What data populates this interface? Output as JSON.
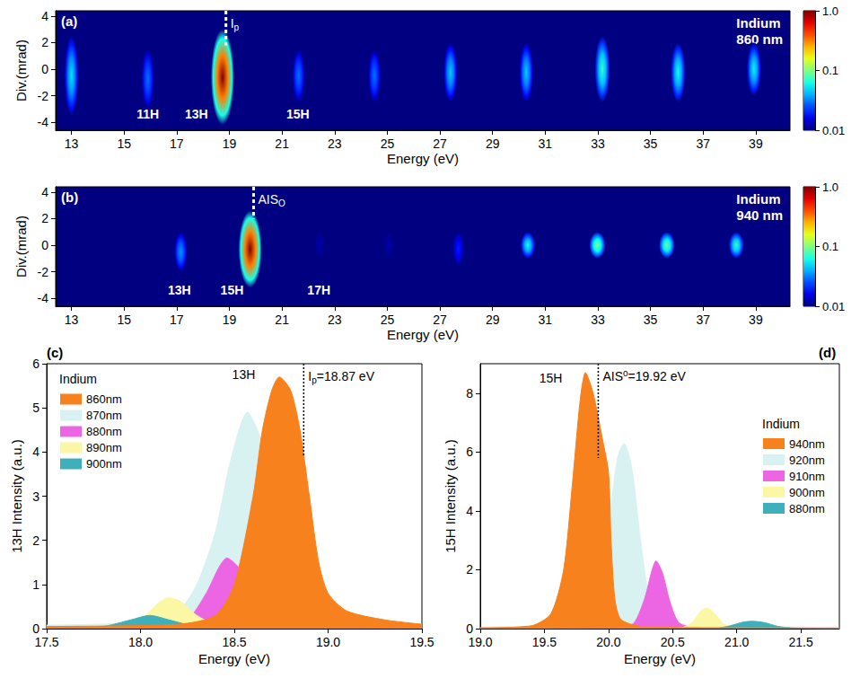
{
  "chart_data": [
    {
      "type": "heatmap",
      "panel_label": "(a)",
      "sample": "Indium",
      "wavelength_label": "860 nm",
      "x_label": "Energy (eV)",
      "y_label": "Div.(mrad)",
      "xlim": [
        12.4,
        40.3
      ],
      "xticks": [
        13,
        15,
        17,
        19,
        21,
        23,
        25,
        27,
        29,
        31,
        33,
        35,
        37,
        39
      ],
      "ylim": [
        -4.6,
        4.4
      ],
      "yticks": [
        -4,
        -2,
        0,
        2,
        4
      ],
      "grid": false,
      "spots": [
        {
          "energy": 13.0,
          "div_min": -3.5,
          "div_max": 2.5,
          "intensity": 0.05
        },
        {
          "energy": 15.9,
          "div_min": -3.0,
          "div_max": 1.5,
          "intensity": 0.03
        },
        {
          "energy": 18.74,
          "div_min": -4.2,
          "div_max": 3.0,
          "intensity": 1.0
        },
        {
          "energy": 21.63,
          "div_min": -2.5,
          "div_max": 1.5,
          "intensity": 0.03
        },
        {
          "energy": 24.51,
          "div_min": -2.5,
          "div_max": 1.5,
          "intensity": 0.03
        },
        {
          "energy": 27.4,
          "div_min": -2.5,
          "div_max": 2.0,
          "intensity": 0.045
        },
        {
          "energy": 30.28,
          "div_min": -2.5,
          "div_max": 2.0,
          "intensity": 0.045
        },
        {
          "energy": 33.17,
          "div_min": -2.5,
          "div_max": 2.5,
          "intensity": 0.07
        },
        {
          "energy": 36.05,
          "div_min": -2.5,
          "div_max": 2.0,
          "intensity": 0.06
        },
        {
          "energy": 38.93,
          "div_min": -2.0,
          "div_max": 2.0,
          "intensity": 0.055
        }
      ],
      "annotations": [
        {
          "text": "11H",
          "x": 15.9,
          "y": -3.4
        },
        {
          "text": "13H",
          "x": 17.75,
          "y": -3.4
        },
        {
          "text": "15H",
          "x": 21.6,
          "y": -3.4
        }
      ],
      "marker_line": {
        "x": 18.87,
        "y_range": [
          1.8,
          4.4
        ],
        "text": "I",
        "subscript": "p"
      },
      "colorbar": {
        "lim": [
          0.01,
          1
        ],
        "ticks": [
          0.01,
          0.1,
          {
            "value": 1,
            "label": "1.0"
          }
        ],
        "log": true
      }
    },
    {
      "type": "heatmap",
      "panel_label": "(b)",
      "sample": "Indium",
      "wavelength_label": "940 nm",
      "x_label": "Energy (eV)",
      "y_label": "Div.(mrad)",
      "xlim": [
        12.4,
        40.3
      ],
      "xticks": [
        13,
        15,
        17,
        19,
        21,
        23,
        25,
        27,
        29,
        31,
        33,
        35,
        37,
        39
      ],
      "ylim": [
        -4.6,
        4.4
      ],
      "yticks": [
        -4,
        -2,
        0,
        2,
        4
      ],
      "grid": false,
      "spots": [
        {
          "energy": 17.15,
          "div_min": -2.0,
          "div_max": 1.0,
          "intensity": 0.035
        },
        {
          "energy": 19.79,
          "div_min": -3.2,
          "div_max": 2.6,
          "intensity": 1.0
        },
        {
          "energy": 22.43,
          "div_min": -1.0,
          "div_max": 1.0,
          "intensity": 0.012
        },
        {
          "energy": 25.06,
          "div_min": -1.0,
          "div_max": 1.0,
          "intensity": 0.012
        },
        {
          "energy": 27.7,
          "div_min": -1.5,
          "div_max": 1.0,
          "intensity": 0.02
        },
        {
          "energy": 30.34,
          "div_min": -1.0,
          "div_max": 1.0,
          "intensity": 0.06
        },
        {
          "energy": 32.98,
          "div_min": -1.0,
          "div_max": 1.0,
          "intensity": 0.1
        },
        {
          "energy": 35.62,
          "div_min": -1.0,
          "div_max": 1.0,
          "intensity": 0.09
        },
        {
          "energy": 38.26,
          "div_min": -1.0,
          "div_max": 1.0,
          "intensity": 0.07
        }
      ],
      "annotations": [
        {
          "text": "13H",
          "x": 17.1,
          "y": -3.4
        },
        {
          "text": "15H",
          "x": 19.1,
          "y": -3.4
        },
        {
          "text": "17H",
          "x": 22.4,
          "y": -3.4
        }
      ],
      "marker_line": {
        "x": 19.92,
        "y_range": [
          2.0,
          4.4
        ],
        "text": "AIS",
        "subscript": "O"
      },
      "colorbar": {
        "lim": [
          0.01,
          1
        ],
        "ticks": [
          0.01,
          0.1,
          {
            "value": 1,
            "label": "1.0"
          }
        ],
        "log": true
      }
    },
    {
      "type": "area",
      "panel_label": "(c)",
      "legend_title": "Indium",
      "legend": "upper left",
      "x_label": "Energy (eV)",
      "y_label": "13H Intensity (a.u.)",
      "xlim": [
        17.5,
        19.5
      ],
      "xticks": [
        17.5,
        {
          "value": 18,
          "label": "18.0"
        },
        18.5,
        {
          "value": 19,
          "label": "19.0"
        },
        19.5
      ],
      "ylim": [
        0,
        6
      ],
      "yticks": [
        0,
        1,
        2,
        3,
        4,
        5,
        6
      ],
      "grid": false,
      "series": [
        {
          "name": "860nm",
          "color": "#f7811d",
          "x": [
            17.5,
            18.2,
            18.4,
            18.5,
            18.6,
            18.65,
            18.7,
            18.74,
            18.8,
            18.85,
            18.9,
            18.95,
            19.0,
            19.1,
            19.3,
            19.5
          ],
          "values": [
            0.05,
            0.1,
            0.3,
            1.0,
            3.0,
            4.5,
            5.4,
            5.7,
            5.4,
            4.5,
            3.0,
            1.5,
            0.8,
            0.4,
            0.2,
            0.1
          ]
        },
        {
          "name": "870nm",
          "color": "#d8f1f1",
          "x": [
            17.5,
            18.0,
            18.2,
            18.3,
            18.4,
            18.48,
            18.57,
            18.65,
            18.72,
            18.8,
            18.9,
            19.0,
            19.2,
            19.5
          ],
          "values": [
            0.08,
            0.15,
            0.4,
            1.0,
            2.2,
            3.8,
            4.9,
            4.2,
            3.0,
            1.8,
            0.9,
            0.4,
            0.2,
            0.1
          ]
        },
        {
          "name": "880nm",
          "color": "#ec66e4",
          "x": [
            17.5,
            18.1,
            18.25,
            18.35,
            18.42,
            18.46,
            18.52,
            18.6,
            18.7,
            18.85,
            19.5
          ],
          "values": [
            0.03,
            0.05,
            0.2,
            0.8,
            1.4,
            1.6,
            1.4,
            0.8,
            0.3,
            0.1,
            0.02
          ]
        },
        {
          "name": "890nm",
          "color": "#fbf7a4",
          "x": [
            17.5,
            17.9,
            18.0,
            18.1,
            18.15,
            18.22,
            18.3,
            18.4,
            18.6,
            19.5
          ],
          "values": [
            0.02,
            0.05,
            0.2,
            0.6,
            0.7,
            0.6,
            0.3,
            0.1,
            0.03,
            0.01
          ]
        },
        {
          "name": "900nm",
          "color": "#3fb0bb",
          "x": [
            17.5,
            17.8,
            17.95,
            18.05,
            18.15,
            18.3,
            18.6,
            19.5
          ],
          "values": [
            0.02,
            0.05,
            0.2,
            0.3,
            0.2,
            0.05,
            0.02,
            0.01
          ]
        }
      ],
      "annotations": [
        {
          "text": "13H",
          "x": 18.55,
          "y": 5.75
        }
      ],
      "marker_line": {
        "x": 18.87,
        "y_range": [
          3.9,
          6
        ],
        "text": "I",
        "subscript": "p",
        "suffix": "=18.87 eV"
      }
    },
    {
      "type": "area",
      "panel_label": "(d)",
      "legend_title": "Indium",
      "legend": "center right",
      "x_label": "Energy (eV)",
      "y_label": "15H Intensity (a.u.)",
      "xlim": [
        19.0,
        21.8
      ],
      "xticks": [
        {
          "value": 19,
          "label": "19.0"
        },
        19.5,
        {
          "value": 20,
          "label": "20.0"
        },
        20.5,
        {
          "value": 21,
          "label": "21.0"
        },
        21.5
      ],
      "ylim": [
        0,
        9
      ],
      "yticks": [
        0,
        2,
        4,
        6,
        8
      ],
      "grid": false,
      "series": [
        {
          "name": "940nm",
          "color": "#f7811d",
          "x": [
            19.0,
            19.4,
            19.55,
            19.65,
            19.72,
            19.78,
            19.82,
            19.88,
            19.95,
            20.0,
            20.02,
            20.05,
            20.1,
            20.3,
            21.8
          ],
          "values": [
            0.03,
            0.1,
            0.5,
            2.0,
            5.0,
            7.8,
            8.7,
            8.0,
            6.5,
            5.3,
            3.0,
            1.0,
            0.3,
            0.05,
            0.02
          ]
        },
        {
          "name": "920nm",
          "color": "#d8f1f1",
          "x": [
            19.0,
            19.6,
            19.8,
            19.9,
            20.0,
            20.07,
            20.12,
            20.18,
            20.25,
            20.32,
            20.4,
            20.6,
            21.8
          ],
          "values": [
            0.02,
            0.05,
            0.3,
            1.0,
            3.5,
            5.8,
            6.3,
            5.5,
            3.0,
            1.0,
            0.3,
            0.05,
            0.02
          ]
        },
        {
          "name": "910nm",
          "color": "#ec66e4",
          "x": [
            19.0,
            20.1,
            20.2,
            20.28,
            20.34,
            20.37,
            20.42,
            20.48,
            20.55,
            20.7,
            21.8
          ],
          "values": [
            0.02,
            0.03,
            0.2,
            1.0,
            2.0,
            2.3,
            1.9,
            0.9,
            0.2,
            0.03,
            0.02
          ]
        },
        {
          "name": "900nm",
          "color": "#fbf7a4",
          "x": [
            19.0,
            20.55,
            20.65,
            20.72,
            20.77,
            20.83,
            20.9,
            21.0,
            21.8
          ],
          "values": [
            0.01,
            0.02,
            0.2,
            0.6,
            0.7,
            0.5,
            0.15,
            0.03,
            0.01
          ]
        },
        {
          "name": "880nm",
          "color": "#3fb0bb",
          "x": [
            19.0,
            20.85,
            20.95,
            21.05,
            21.12,
            21.22,
            21.32,
            21.45,
            21.8
          ],
          "values": [
            0.01,
            0.02,
            0.1,
            0.22,
            0.25,
            0.2,
            0.08,
            0.02,
            0.01
          ]
        }
      ],
      "annotations": [
        {
          "text": "15H",
          "x": 19.55,
          "y": 8.5
        }
      ],
      "marker_line": {
        "x": 19.92,
        "y_range": [
          5.8,
          9
        ],
        "text": "AIS",
        "superscript": "o",
        "suffix": "=19.92 eV"
      }
    }
  ]
}
